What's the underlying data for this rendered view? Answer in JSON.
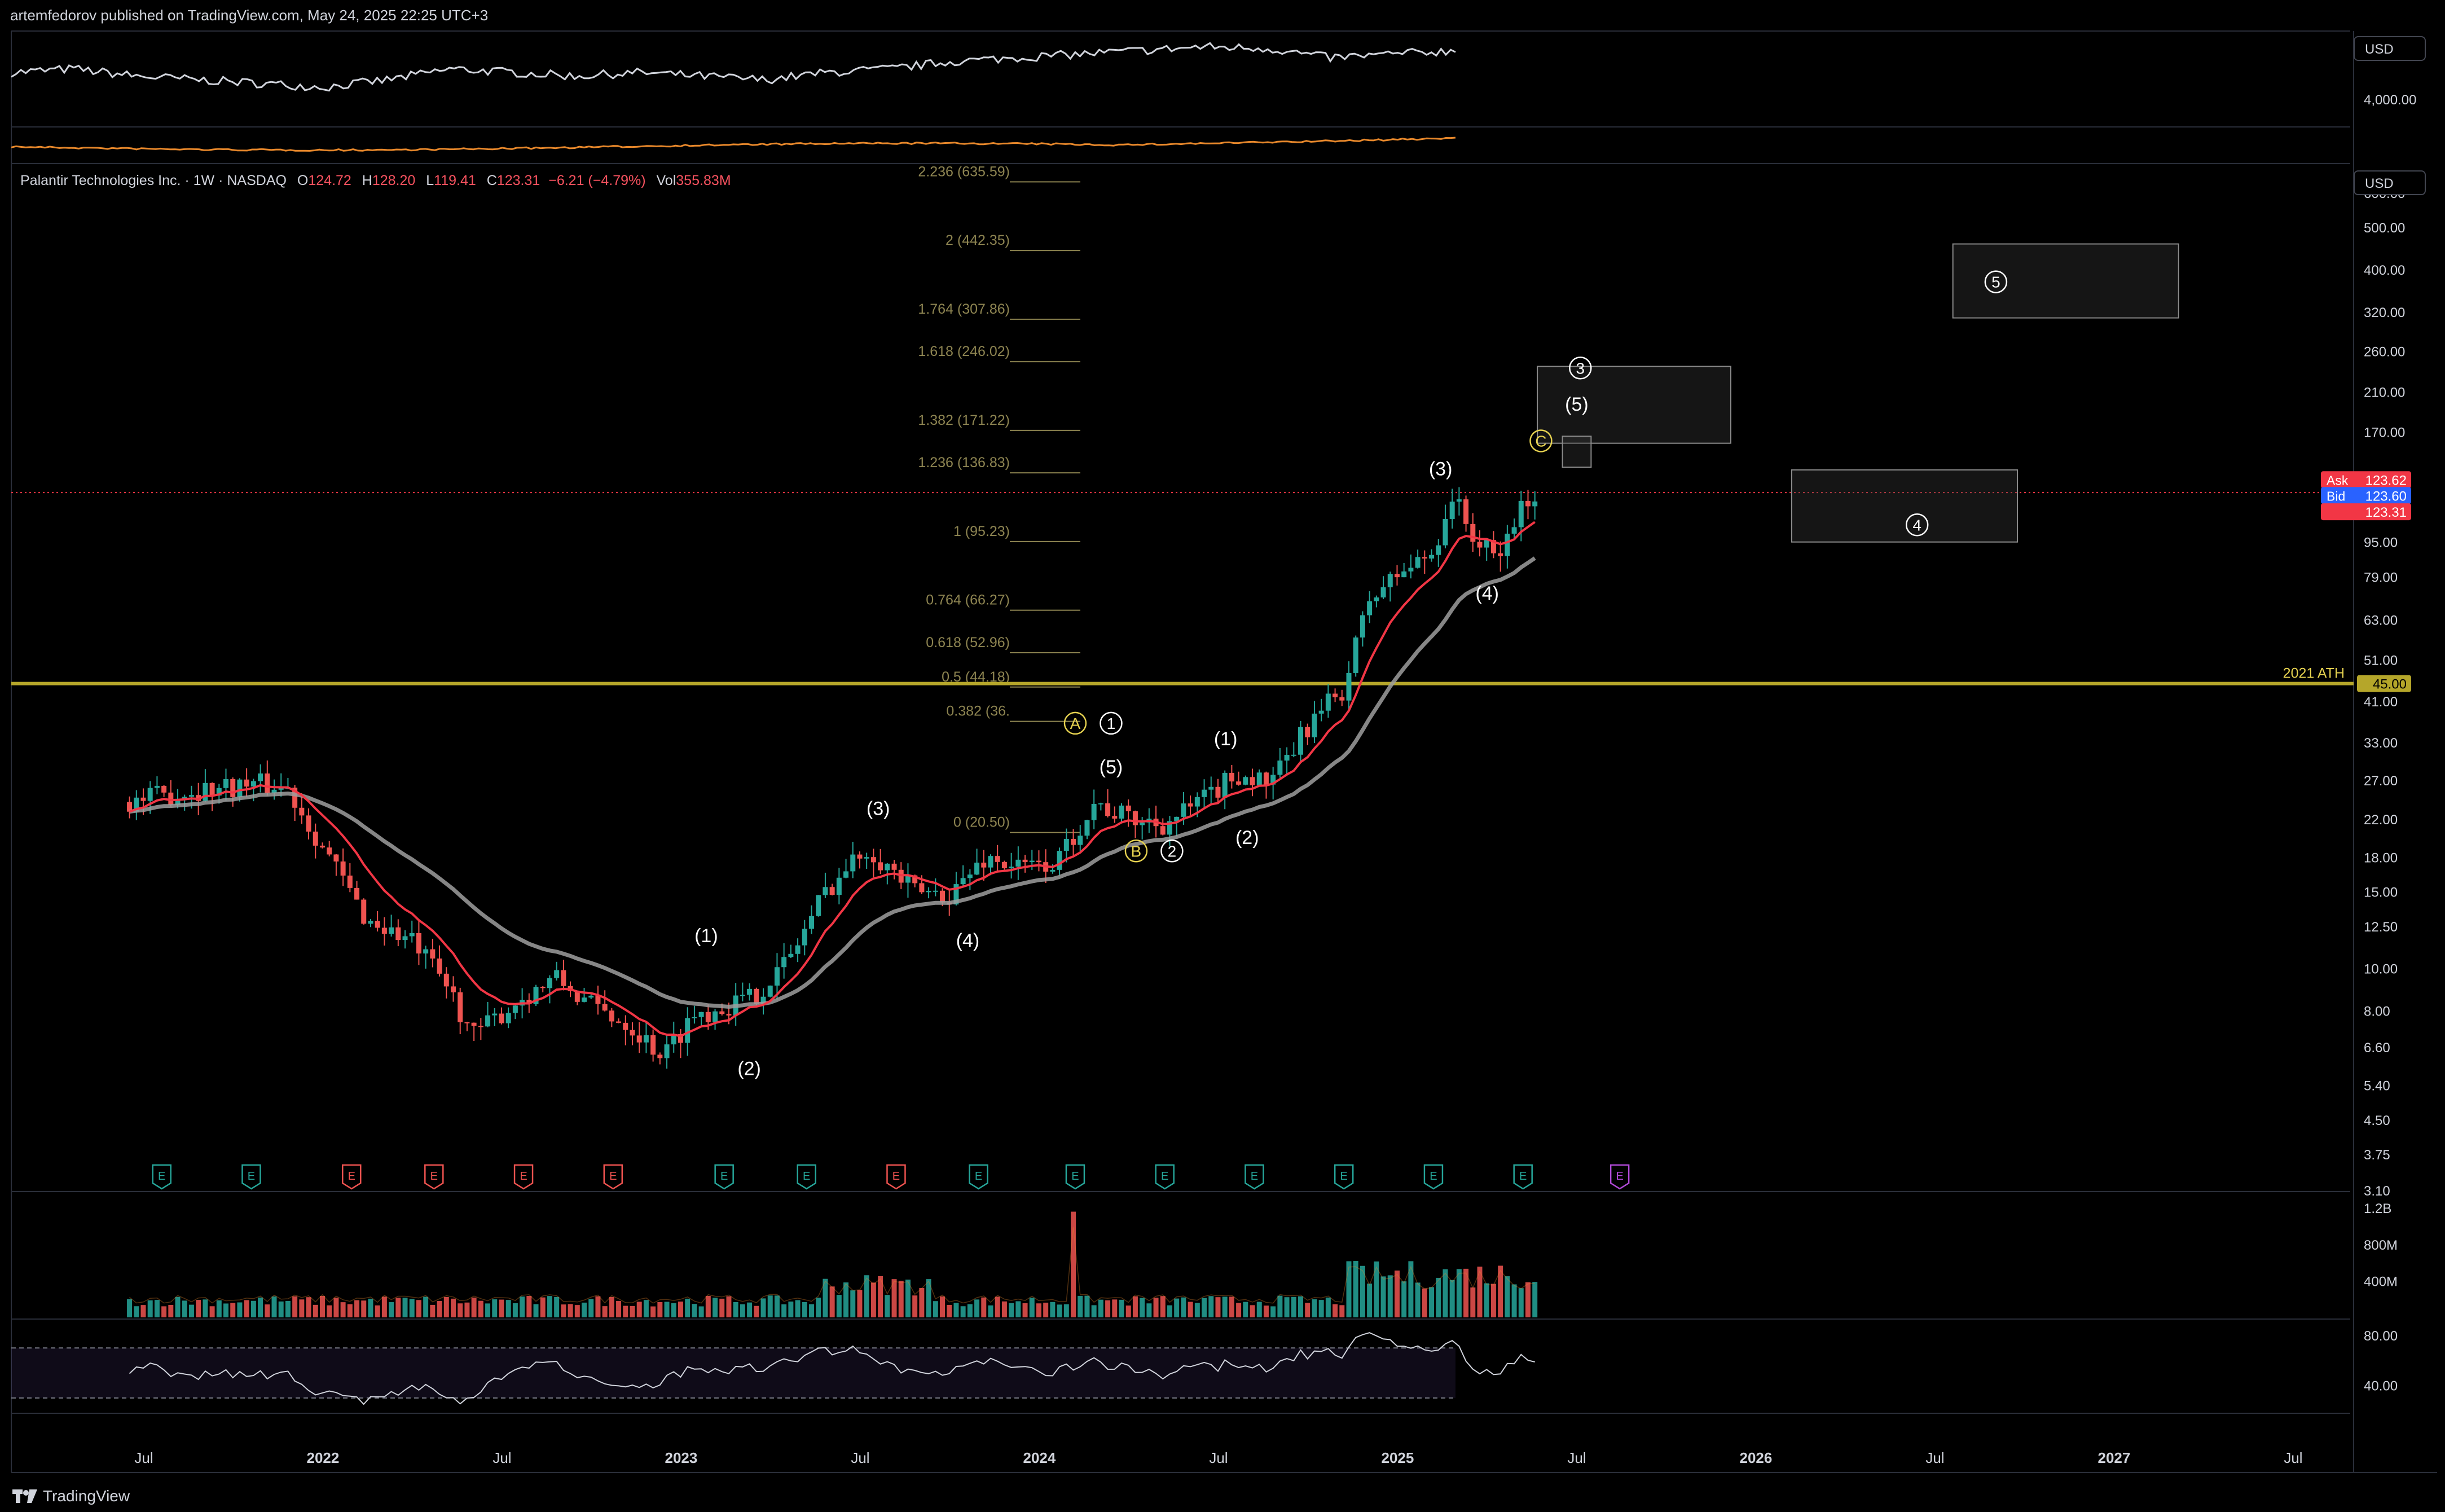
{
  "header": {
    "published_by": "artemfedorov published on TradingView.com, May 24, 2025 22:25 UTC+3"
  },
  "footer": {
    "brand": "TradingView",
    "logo_icon": "tradingview-logo-icon"
  },
  "legend": {
    "symbol": "Palantir Technologies Inc. · 1W · NASDAQ",
    "open_label": "O",
    "open": "124.72",
    "high_label": "H",
    "high": "128.20",
    "low_label": "L",
    "low": "119.41",
    "close_label": "C",
    "close": "123.31",
    "change": "−6.21 (−4.79%)",
    "vol_label": "Vol",
    "volume": "355.83M"
  },
  "currency": {
    "top_pane": "USD",
    "main_pane": "USD"
  },
  "colors": {
    "up": "#26a69a",
    "down": "#ef5350",
    "ema_fast": "#f23645",
    "ema_slow": "#9e9e9e",
    "ath_line": "#b5a62a",
    "fib": "#8d8451",
    "label_yellow": "#e6d250",
    "last_price": "#f23645",
    "bid": "#2962ff"
  },
  "chart_data": [
    {
      "type": "line",
      "title": "",
      "pane": "comparison (top)",
      "y_tick_labels": [
        "4,000.00"
      ],
      "series": [
        {
          "values": [
            0.55,
            0.6,
            0.5,
            0.45,
            0.4,
            0.35,
            0.45,
            0.6,
            0.55,
            0.5,
            0.55,
            0.5,
            0.45,
            0.55,
            0.6,
            0.7,
            0.75,
            0.8,
            0.85,
            0.9,
            0.88,
            0.75,
            0.8,
            0.85
          ]
        }
      ]
    },
    {
      "type": "candlestick",
      "pane": "price",
      "scale": "log",
      "ylim": [
        3.1,
        700
      ],
      "x_tick_labels": [
        "Jul",
        "2022",
        "Jul",
        "2023",
        "Jul",
        "2024",
        "Jul",
        "2025",
        "Jul",
        "2026",
        "Jul",
        "2027",
        "Jul"
      ],
      "y_tick_labels": [
        "600.00",
        "500.00",
        "400.00",
        "320.00",
        "260.00",
        "210.00",
        "170.00",
        "115.00",
        "95.00",
        "79.00",
        "63.00",
        "51.00",
        "41.00",
        "33.00",
        "27.00",
        "22.00",
        "18.00",
        "15.00",
        "12.50",
        "10.00",
        "8.00",
        "6.60",
        "5.40",
        "4.50",
        "3.75",
        "3.10"
      ],
      "price_path": [
        {
          "t": 2021.45,
          "close": 24
        },
        {
          "t": 2021.62,
          "close": 25.5
        },
        {
          "t": 2021.8,
          "close": 26.5
        },
        {
          "t": 2021.9,
          "close": 26
        },
        {
          "t": 2022.0,
          "close": 19
        },
        {
          "t": 2022.12,
          "close": 13
        },
        {
          "t": 2022.25,
          "close": 11.5
        },
        {
          "t": 2022.35,
          "close": 9
        },
        {
          "t": 2022.42,
          "close": 7
        },
        {
          "t": 2022.55,
          "close": 8.5
        },
        {
          "t": 2022.65,
          "close": 9.5
        },
        {
          "t": 2022.75,
          "close": 8.2
        },
        {
          "t": 2022.85,
          "close": 7.5
        },
        {
          "t": 2022.95,
          "close": 6.3
        },
        {
          "t": 2023.03,
          "close": 7.8
        },
        {
          "t": 2023.12,
          "close": 8.2
        },
        {
          "t": 2023.2,
          "close": 8.6
        },
        {
          "t": 2023.3,
          "close": 10.5
        },
        {
          "t": 2023.4,
          "close": 15
        },
        {
          "t": 2023.52,
          "close": 19
        },
        {
          "t": 2023.65,
          "close": 15
        },
        {
          "t": 2023.75,
          "close": 14.8
        },
        {
          "t": 2023.85,
          "close": 18
        },
        {
          "t": 2023.95,
          "close": 17
        },
        {
          "t": 2024.05,
          "close": 17.5
        },
        {
          "t": 2024.15,
          "close": 24
        },
        {
          "t": 2024.25,
          "close": 22
        },
        {
          "t": 2024.35,
          "close": 21.5
        },
        {
          "t": 2024.45,
          "close": 24
        },
        {
          "t": 2024.55,
          "close": 28
        },
        {
          "t": 2024.65,
          "close": 26.5
        },
        {
          "t": 2024.75,
          "close": 36
        },
        {
          "t": 2024.85,
          "close": 44
        },
        {
          "t": 2024.92,
          "close": 70
        },
        {
          "t": 2025.0,
          "close": 80
        },
        {
          "t": 2025.1,
          "close": 90
        },
        {
          "t": 2025.15,
          "close": 122
        },
        {
          "t": 2025.22,
          "close": 95
        },
        {
          "t": 2025.28,
          "close": 86
        },
        {
          "t": 2025.32,
          "close": 105
        },
        {
          "t": 2025.38,
          "close": 124
        },
        {
          "t": 2025.4,
          "close": 123.31
        }
      ],
      "ath": {
        "label": "2021 ATH",
        "value": 45.0,
        "value_label": "45.00"
      },
      "fib_levels": [
        {
          "label": "2.236 (635.59)",
          "value": 635.59
        },
        {
          "label": "2 (442.35)",
          "value": 442.35
        },
        {
          "label": "1.764 (307.86)",
          "value": 307.86
        },
        {
          "label": "1.618 (246.02)",
          "value": 246.02
        },
        {
          "label": "1.382 (171.22)",
          "value": 171.22
        },
        {
          "label": "1.236 (136.83)",
          "value": 136.83
        },
        {
          "label": "1 (95.23)",
          "value": 95.23
        },
        {
          "label": "0.764 (66.27)",
          "value": 66.27
        },
        {
          "label": "0.618 (52.96)",
          "value": 52.96
        },
        {
          "label": "0.5 (44.18)",
          "value": 44.18
        },
        {
          "label": "0.382 (36.",
          "value": 36.86
        },
        {
          "label": "0 (20.50)",
          "value": 20.5
        }
      ],
      "wave_labels": [
        {
          "text": "(1)",
          "t": 2023.07,
          "price": 11.5
        },
        {
          "text": "(2)",
          "t": 2023.19,
          "price": 5.7
        },
        {
          "text": "(3)",
          "t": 2023.55,
          "price": 22.5
        },
        {
          "text": "(4)",
          "t": 2023.8,
          "price": 11.2
        },
        {
          "text": "(5)",
          "t": 2024.2,
          "price": 28
        },
        {
          "text": "(1)",
          "t": 2024.52,
          "price": 32.5
        },
        {
          "text": "(2)",
          "t": 2024.58,
          "price": 19.3
        },
        {
          "text": "(3)",
          "t": 2025.12,
          "price": 135
        },
        {
          "text": "(4)",
          "t": 2025.25,
          "price": 70
        },
        {
          "text": "(5)",
          "t": 2025.5,
          "price": 190
        }
      ],
      "circled_labels": [
        {
          "text": "A",
          "t": 2024.1,
          "price": 36.5,
          "color": "yellow"
        },
        {
          "text": "1",
          "t": 2024.2,
          "price": 36.5,
          "color": "white"
        },
        {
          "text": "B",
          "t": 2024.27,
          "price": 18.6,
          "color": "yellow"
        },
        {
          "text": "2",
          "t": 2024.37,
          "price": 18.6,
          "color": "white"
        },
        {
          "text": "C",
          "t": 2025.4,
          "price": 162,
          "color": "yellow"
        },
        {
          "text": "3",
          "t": 2025.51,
          "price": 238,
          "color": "white"
        },
        {
          "text": "4",
          "t": 2026.45,
          "price": 104,
          "color": "white"
        },
        {
          "text": "5",
          "t": 2026.67,
          "price": 375,
          "color": "white"
        }
      ],
      "target_boxes": [
        {
          "name": "wave-3-target",
          "t_start": 2025.39,
          "t_end": 2025.93,
          "high": 240,
          "low": 160
        },
        {
          "name": "wave-c-target",
          "t_start": 2025.46,
          "t_end": 2025.54,
          "high": 166,
          "low": 141
        },
        {
          "name": "wave-4-target",
          "t_start": 2026.1,
          "t_end": 2026.73,
          "high": 139,
          "low": 95
        },
        {
          "name": "wave-5-target",
          "t_start": 2026.55,
          "t_end": 2027.18,
          "high": 458,
          "low": 310
        }
      ],
      "price_tags": [
        {
          "label": "Ask",
          "value": "123.62",
          "color": "#f23645"
        },
        {
          "label": "Bid",
          "value": "123.60",
          "color": "#2962ff"
        },
        {
          "label": "",
          "value": "123.31",
          "color": "#f23645"
        }
      ],
      "earnings_markers": [
        {
          "t": 2021.55,
          "type": "up"
        },
        {
          "t": 2021.8,
          "type": "up"
        },
        {
          "t": 2022.08,
          "type": "down"
        },
        {
          "t": 2022.31,
          "type": "down"
        },
        {
          "t": 2022.56,
          "type": "down"
        },
        {
          "t": 2022.81,
          "type": "down"
        },
        {
          "t": 2023.12,
          "type": "up"
        },
        {
          "t": 2023.35,
          "type": "up"
        },
        {
          "t": 2023.6,
          "type": "down"
        },
        {
          "t": 2023.83,
          "type": "up"
        },
        {
          "t": 2024.1,
          "type": "up"
        },
        {
          "t": 2024.35,
          "type": "up"
        },
        {
          "t": 2024.6,
          "type": "up"
        },
        {
          "t": 2024.85,
          "type": "up"
        },
        {
          "t": 2025.1,
          "type": "up"
        },
        {
          "t": 2025.35,
          "type": "up"
        },
        {
          "t": 2025.62,
          "type": "future"
        }
      ],
      "earnings_label": "E"
    },
    {
      "type": "bar",
      "pane": "volume",
      "y_tick_labels": [
        "1.2B",
        "800M",
        "400M"
      ],
      "ylim": [
        0,
        1300
      ]
    },
    {
      "type": "line",
      "pane": "RSI",
      "y_tick_labels": [
        "80.00",
        "40.00"
      ],
      "ylim": [
        20,
        90
      ],
      "bands": [
        70,
        30
      ]
    }
  ]
}
